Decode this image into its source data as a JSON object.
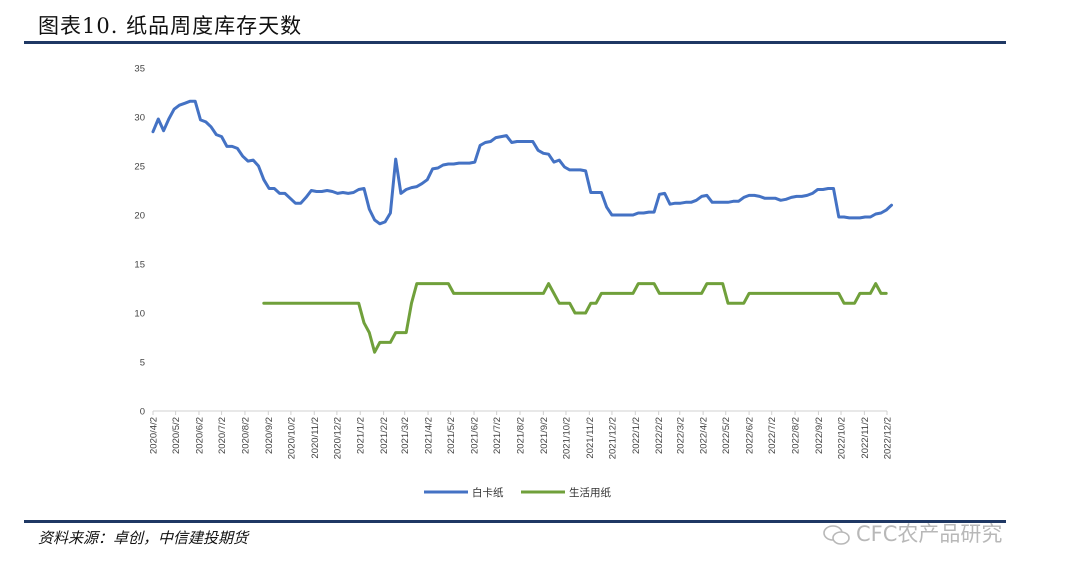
{
  "header": {
    "title": "图表10.  纸品周度库存天数"
  },
  "footer": {
    "source": "资料来源：卓创，中信建投期货"
  },
  "watermark": {
    "text": "CFC农产品研究"
  },
  "colors": {
    "rule": "#1f3864",
    "series_white_card": "#4472c4",
    "series_tissue": "#70a03b"
  },
  "chart_data": {
    "type": "line",
    "title": "",
    "xlabel": "",
    "ylabel": "",
    "ylim": [
      0,
      35
    ],
    "yticks": [
      0,
      5,
      10,
      15,
      20,
      25,
      30,
      35
    ],
    "grid": false,
    "legend_position": "bottom",
    "x_ticks": [
      "2020/4/2",
      "2020/5/2",
      "2020/6/2",
      "2020/7/2",
      "2020/8/2",
      "2020/9/2",
      "2020/10/2",
      "2020/11/2",
      "2020/12/2",
      "2021/1/2",
      "2021/2/2",
      "2021/3/2",
      "2021/4/2",
      "2021/5/2",
      "2021/6/2",
      "2021/7/2",
      "2021/8/2",
      "2021/9/2",
      "2021/10/2",
      "2021/11/2",
      "2021/12/2",
      "2022/1/2",
      "2022/2/2",
      "2022/3/2",
      "2022/4/2",
      "2022/5/2",
      "2022/6/2",
      "2022/7/2",
      "2022/8/2",
      "2022/9/2",
      "2022/10/2",
      "2022/11/2",
      "2022/12/2"
    ],
    "series": [
      {
        "name": "白卡纸",
        "color": "#4472c4",
        "points": [
          [
            "2020/4/2",
            28.5
          ],
          [
            "2020/4/9",
            29.8
          ],
          [
            "2020/4/16",
            28.6
          ],
          [
            "2020/4/23",
            29.8
          ],
          [
            "2020/4/30",
            30.8
          ],
          [
            "2020/5/7",
            31.2
          ],
          [
            "2020/5/14",
            31.4
          ],
          [
            "2020/5/21",
            31.6
          ],
          [
            "2020/5/28",
            31.6
          ],
          [
            "2020/6/4",
            29.7
          ],
          [
            "2020/6/11",
            29.5
          ],
          [
            "2020/6/18",
            29.0
          ],
          [
            "2020/6/25",
            28.2
          ],
          [
            "2020/7/2",
            28.0
          ],
          [
            "2020/7/9",
            27.0
          ],
          [
            "2020/7/16",
            27.0
          ],
          [
            "2020/7/23",
            26.8
          ],
          [
            "2020/7/30",
            26.0
          ],
          [
            "2020/8/6",
            25.5
          ],
          [
            "2020/8/13",
            25.6
          ],
          [
            "2020/8/20",
            25.0
          ],
          [
            "2020/8/27",
            23.6
          ],
          [
            "2020/9/3",
            22.7
          ],
          [
            "2020/9/10",
            22.7
          ],
          [
            "2020/9/17",
            22.2
          ],
          [
            "2020/9/24",
            22.2
          ],
          [
            "2020/10/1",
            21.7
          ],
          [
            "2020/10/8",
            21.2
          ],
          [
            "2020/10/15",
            21.2
          ],
          [
            "2020/10/22",
            21.8
          ],
          [
            "2020/10/29",
            22.5
          ],
          [
            "2020/11/5",
            22.4
          ],
          [
            "2020/11/12",
            22.4
          ],
          [
            "2020/11/19",
            22.5
          ],
          [
            "2020/11/26",
            22.4
          ],
          [
            "2020/12/3",
            22.2
          ],
          [
            "2020/12/10",
            22.3
          ],
          [
            "2020/12/17",
            22.2
          ],
          [
            "2020/12/24",
            22.3
          ],
          [
            "2020/12/31",
            22.6
          ],
          [
            "2021/1/7",
            22.7
          ],
          [
            "2021/1/14",
            20.6
          ],
          [
            "2021/1/21",
            19.5
          ],
          [
            "2021/1/28",
            19.1
          ],
          [
            "2021/2/4",
            19.3
          ],
          [
            "2021/2/11",
            20.2
          ],
          [
            "2021/2/18",
            25.7
          ],
          [
            "2021/2/25",
            22.2
          ],
          [
            "2021/3/4",
            22.6
          ],
          [
            "2021/3/11",
            22.8
          ],
          [
            "2021/3/18",
            22.9
          ],
          [
            "2021/3/25",
            23.2
          ],
          [
            "2021/4/1",
            23.6
          ],
          [
            "2021/4/8",
            24.7
          ],
          [
            "2021/4/15",
            24.8
          ],
          [
            "2021/4/22",
            25.1
          ],
          [
            "2021/4/29",
            25.2
          ],
          [
            "2021/5/6",
            25.2
          ],
          [
            "2021/5/13",
            25.3
          ],
          [
            "2021/5/20",
            25.3
          ],
          [
            "2021/5/27",
            25.3
          ],
          [
            "2021/6/3",
            25.4
          ],
          [
            "2021/6/10",
            27.1
          ],
          [
            "2021/6/17",
            27.4
          ],
          [
            "2021/6/24",
            27.5
          ],
          [
            "2021/7/1",
            27.9
          ],
          [
            "2021/7/8",
            28.0
          ],
          [
            "2021/7/15",
            28.1
          ],
          [
            "2021/7/22",
            27.4
          ],
          [
            "2021/7/29",
            27.5
          ],
          [
            "2021/8/5",
            27.5
          ],
          [
            "2021/8/12",
            27.5
          ],
          [
            "2021/8/19",
            27.5
          ],
          [
            "2021/8/26",
            26.6
          ],
          [
            "2021/9/2",
            26.3
          ],
          [
            "2021/9/9",
            26.2
          ],
          [
            "2021/9/16",
            25.4
          ],
          [
            "2021/9/23",
            25.6
          ],
          [
            "2021/9/30",
            24.9
          ],
          [
            "2021/10/7",
            24.6
          ],
          [
            "2021/10/14",
            24.6
          ],
          [
            "2021/10/21",
            24.6
          ],
          [
            "2021/10/28",
            24.5
          ],
          [
            "2021/11/4",
            22.3
          ],
          [
            "2021/11/11",
            22.3
          ],
          [
            "2021/11/18",
            22.3
          ],
          [
            "2021/11/25",
            20.8
          ],
          [
            "2021/12/2",
            20.0
          ],
          [
            "2021/12/9",
            20.0
          ],
          [
            "2021/12/16",
            20.0
          ],
          [
            "2021/12/23",
            20.0
          ],
          [
            "2021/12/30",
            20.0
          ],
          [
            "2022/1/6",
            20.2
          ],
          [
            "2022/1/13",
            20.2
          ],
          [
            "2022/1/20",
            20.3
          ],
          [
            "2022/1/27",
            20.3
          ],
          [
            "2022/2/3",
            22.1
          ],
          [
            "2022/2/10",
            22.2
          ],
          [
            "2022/2/17",
            21.1
          ],
          [
            "2022/2/24",
            21.2
          ],
          [
            "2022/3/3",
            21.2
          ],
          [
            "2022/3/10",
            21.3
          ],
          [
            "2022/3/17",
            21.3
          ],
          [
            "2022/3/24",
            21.5
          ],
          [
            "2022/3/31",
            21.9
          ],
          [
            "2022/4/7",
            22.0
          ],
          [
            "2022/4/14",
            21.3
          ],
          [
            "2022/4/21",
            21.3
          ],
          [
            "2022/4/28",
            21.3
          ],
          [
            "2022/5/5",
            21.3
          ],
          [
            "2022/5/12",
            21.4
          ],
          [
            "2022/5/19",
            21.4
          ],
          [
            "2022/5/26",
            21.8
          ],
          [
            "2022/6/2",
            22.0
          ],
          [
            "2022/6/9",
            22.0
          ],
          [
            "2022/6/16",
            21.9
          ],
          [
            "2022/6/23",
            21.7
          ],
          [
            "2022/6/30",
            21.7
          ],
          [
            "2022/7/7",
            21.7
          ],
          [
            "2022/7/14",
            21.5
          ],
          [
            "2022/7/21",
            21.6
          ],
          [
            "2022/7/28",
            21.8
          ],
          [
            "2022/8/4",
            21.9
          ],
          [
            "2022/8/11",
            21.9
          ],
          [
            "2022/8/18",
            22.0
          ],
          [
            "2022/8/25",
            22.2
          ],
          [
            "2022/9/1",
            22.6
          ],
          [
            "2022/9/8",
            22.6
          ],
          [
            "2022/9/15",
            22.7
          ],
          [
            "2022/9/22",
            22.7
          ],
          [
            "2022/9/29",
            19.8
          ],
          [
            "2022/10/6",
            19.8
          ],
          [
            "2022/10/13",
            19.7
          ],
          [
            "2022/10/20",
            19.7
          ],
          [
            "2022/10/27",
            19.7
          ],
          [
            "2022/11/3",
            19.8
          ],
          [
            "2022/11/10",
            19.8
          ],
          [
            "2022/11/17",
            20.1
          ],
          [
            "2022/11/24",
            20.2
          ],
          [
            "2022/12/1",
            20.5
          ],
          [
            "2022/12/8",
            21.0
          ]
        ]
      },
      {
        "name": "生活用纸",
        "color": "#70a03b",
        "points": [
          [
            "2020/8/27",
            11
          ],
          [
            "2020/9/3",
            11
          ],
          [
            "2020/12/31",
            11
          ],
          [
            "2021/1/7",
            9
          ],
          [
            "2021/1/14",
            8
          ],
          [
            "2021/1/21",
            6
          ],
          [
            "2021/1/28",
            7
          ],
          [
            "2021/2/11",
            7
          ],
          [
            "2021/2/18",
            8
          ],
          [
            "2021/3/4",
            8
          ],
          [
            "2021/3/11",
            11
          ],
          [
            "2021/3/18",
            13
          ],
          [
            "2021/3/25",
            13
          ],
          [
            "2021/4/29",
            13
          ],
          [
            "2021/5/6",
            12
          ],
          [
            "2021/9/2",
            12
          ],
          [
            "2021/9/9",
            13
          ],
          [
            "2021/9/16",
            12
          ],
          [
            "2021/9/23",
            11
          ],
          [
            "2021/10/7",
            11
          ],
          [
            "2021/10/14",
            10
          ],
          [
            "2021/10/28",
            10
          ],
          [
            "2021/11/4",
            11
          ],
          [
            "2021/11/11",
            11
          ],
          [
            "2021/11/18",
            12
          ],
          [
            "2021/12/30",
            12
          ],
          [
            "2022/1/6",
            13
          ],
          [
            "2022/1/27",
            13
          ],
          [
            "2022/2/3",
            12
          ],
          [
            "2022/3/31",
            12
          ],
          [
            "2022/4/7",
            13
          ],
          [
            "2022/4/28",
            13
          ],
          [
            "2022/5/5",
            11
          ],
          [
            "2022/5/26",
            11
          ],
          [
            "2022/6/2",
            12
          ],
          [
            "2022/9/29",
            12
          ],
          [
            "2022/10/6",
            11
          ],
          [
            "2022/10/20",
            11
          ],
          [
            "2022/10/27",
            12
          ],
          [
            "2022/11/10",
            12
          ],
          [
            "2022/11/17",
            13
          ],
          [
            "2022/11/24",
            12
          ],
          [
            "2022/12/1",
            12
          ]
        ]
      }
    ]
  }
}
